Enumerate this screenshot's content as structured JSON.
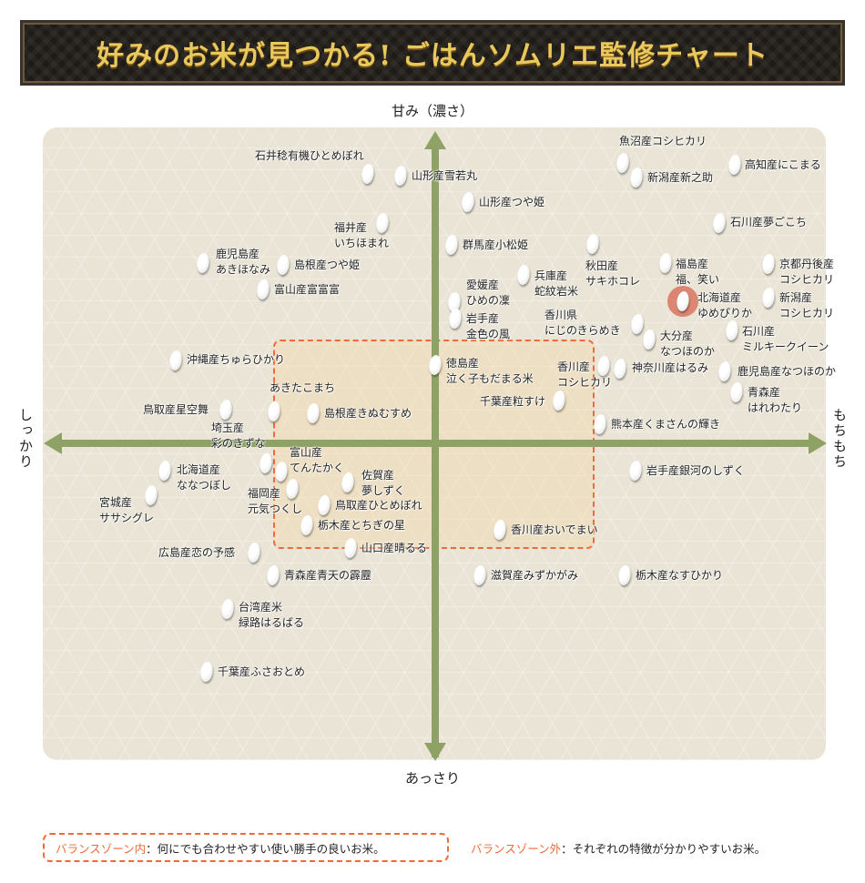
{
  "title": "好みのお米が見つかる! ごはんソムリエ監修チャート",
  "axes": {
    "top": "甘み（濃さ）",
    "bottom": "あっさり",
    "left": "しっかり",
    "right": "もちもち"
  },
  "colors": {
    "axis": "#8ea266",
    "balance_zone": "#ee6a3a",
    "title_text": "#e9c85e",
    "highlight": "#d66650"
  },
  "highlighted_item": "北海道産\nゆめぴりか",
  "items": [
    "石井稔有機ひとめぼれ",
    "山形産雪若丸",
    "山形産つや姫",
    "福井産\nいちほまれ",
    "群馬産小松姫",
    "鹿児島産\nあきほなみ",
    "島根産つや姫",
    "富山産富富富",
    "愛媛産\nひめの凜",
    "岩手産\n金色の風",
    "兵庫産\n蛇紋岩米",
    "秋田産\nサキホコレ",
    "香川県\nにじのきらめき",
    "大分産\nなつほのか",
    "福島産\n福、笑い",
    "北海道産\nゆめぴりか",
    "京都丹後産\nコシヒカリ",
    "新潟産\nコシヒカリ",
    "石川産\nミルキークイーン",
    "魚沼産コシヒカリ",
    "新潟産新之助",
    "高知産にこまる",
    "石川産夢ごこち",
    "沖縄産ちゅらひかり",
    "徳島産\n泣く子もだまる米",
    "香川産\nコシヒカリ",
    "神奈川産はるみ",
    "鹿児島産なつほのか",
    "青森産\nはれわたり",
    "千葉産粒すけ",
    "あきたこまち",
    "島根産きぬむすめ",
    "鳥取産星空舞",
    "埼玉産\n彩のきずな",
    "熊本産くまさんの輝き",
    "北海道産\nななつぼし",
    "宮城産\nササシグレ",
    "富山産\nてんたかく",
    "福岡産\n元気つくし",
    "佐賀産\n夢しずく",
    "鳥取産ひとめぼれ",
    "岩手産銀河のしずく",
    "栃木産とちぎの星",
    "香川産おいでまい",
    "山口産晴るる",
    "広島産恋の予感",
    "青森産青天の霹靂",
    "滋賀産みずかがみ",
    "栃木産なすひかり",
    "台湾産米\n緑路はるばる",
    "千葉産ふさおとめ"
  ],
  "legend": {
    "inside_label": "バランスゾーン内",
    "inside_text": "：何にでも合わせやすい使い勝手の良いお米。",
    "outside_label": "バランスゾーン外",
    "outside_text": "：それぞれの特徴が分かりやすいお米。"
  }
}
